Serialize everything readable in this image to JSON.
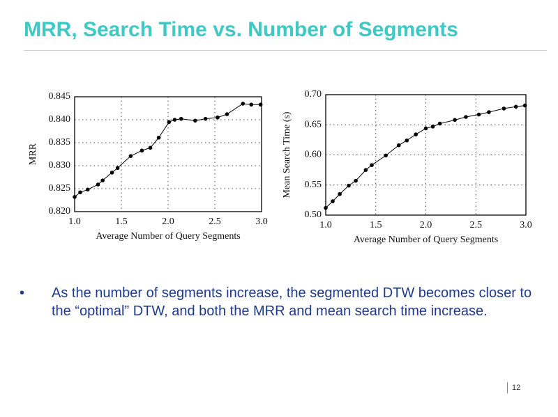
{
  "slide": {
    "title": "MRR, Search Time vs. Number of Segments",
    "bullet": "As the number of segments increase, the segmented DTW becomes closer to the “optimal” DTW, and both the MRR and mean search time increase.",
    "page_number": "12"
  },
  "chart_data": [
    {
      "type": "line",
      "xlabel": "Average Number of Query Segments",
      "ylabel": "MRR",
      "grid": true,
      "color": "#000000",
      "x": [
        1.0,
        1.06,
        1.14,
        1.25,
        1.3,
        1.4,
        1.46,
        1.6,
        1.72,
        1.81,
        1.9,
        2.01,
        2.07,
        2.14,
        2.29,
        2.4,
        2.53,
        2.63,
        2.8,
        2.89,
        2.99
      ],
      "values": [
        0.8232,
        0.8242,
        0.8248,
        0.8259,
        0.8268,
        0.8285,
        0.8295,
        0.8321,
        0.8333,
        0.8339,
        0.8361,
        0.8395,
        0.84,
        0.8402,
        0.8398,
        0.8402,
        0.8405,
        0.8412,
        0.8435,
        0.8433,
        0.8433
      ],
      "xlim": [
        1,
        3
      ],
      "xticks": [
        {
          "value": 1,
          "label": "1.0"
        },
        1.5,
        {
          "value": 2,
          "label": "2.0"
        },
        2.5,
        {
          "value": 3,
          "label": "3.0"
        }
      ],
      "ylim": [
        0.82,
        0.845
      ],
      "yticks": [
        {
          "value": 0.82,
          "label": "0.820"
        },
        0.825,
        {
          "value": 0.83,
          "label": "0.830"
        },
        0.835,
        {
          "value": 0.84,
          "label": "0.840"
        },
        0.845
      ]
    },
    {
      "type": "line",
      "xlabel": "Average Number of Query Segments",
      "ylabel": "Mean Search Time (s)",
      "grid": true,
      "color": "#000000",
      "x": [
        1.0,
        1.07,
        1.14,
        1.23,
        1.3,
        1.4,
        1.46,
        1.6,
        1.73,
        1.81,
        1.9,
        2.0,
        2.07,
        2.14,
        2.29,
        2.4,
        2.53,
        2.63,
        2.78,
        2.9,
        2.99
      ],
      "values": [
        0.512,
        0.523,
        0.535,
        0.549,
        0.557,
        0.575,
        0.583,
        0.599,
        0.616,
        0.624,
        0.634,
        0.644,
        0.647,
        0.652,
        0.658,
        0.663,
        0.667,
        0.671,
        0.677,
        0.68,
        0.682
      ],
      "xlim": [
        1,
        3
      ],
      "xticks": [
        {
          "value": 1,
          "label": "1.0"
        },
        1.5,
        {
          "value": 2,
          "label": "2.0"
        },
        2.5,
        {
          "value": 3,
          "label": "3.0"
        }
      ],
      "ylim": [
        0.5,
        0.7
      ],
      "yticks": [
        {
          "value": 0.5,
          "label": "0.50"
        },
        0.55,
        {
          "value": 0.6,
          "label": "0.60"
        },
        0.65,
        {
          "value": 0.7,
          "label": "0.70"
        }
      ]
    }
  ]
}
